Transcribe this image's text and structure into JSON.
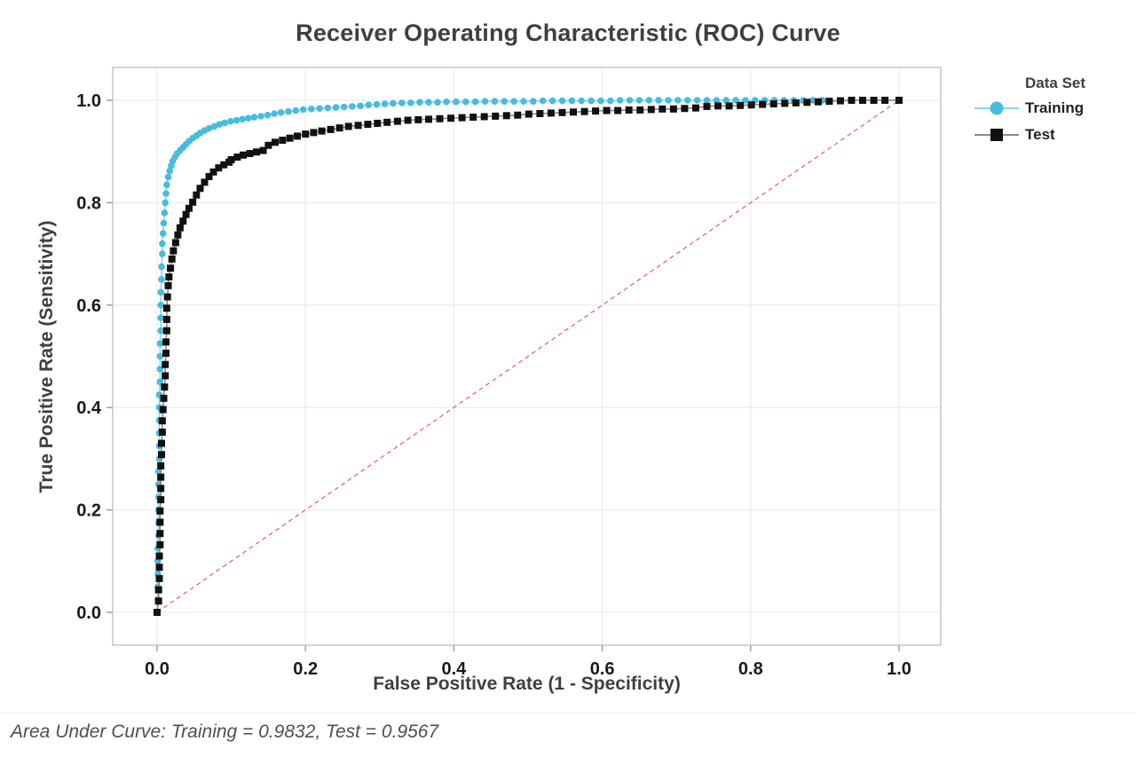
{
  "chart_data": {
    "type": "line",
    "title": "Receiver Operating Characteristic (ROC) Curve",
    "xlabel": "False Positive Rate (1 - Specificity)",
    "ylabel": "True Positive Rate (Sensitivity)",
    "legend_title": "Data Set",
    "legend_position": "right",
    "grid": true,
    "xlim": [
      0,
      1
    ],
    "ylim": [
      0,
      1
    ],
    "x_ticks": [
      "0.0",
      "0.2",
      "0.4",
      "0.6",
      "0.8",
      "1.0"
    ],
    "y_ticks": [
      "0.0",
      "0.2",
      "0.4",
      "0.6",
      "0.8",
      "1.0"
    ],
    "annotation": "Area Under Curve: Training = 0.9832, Test = 0.9567",
    "auc": {
      "training": 0.9832,
      "test": 0.9567
    },
    "reference_line": {
      "from": [
        0,
        0
      ],
      "to": [
        1,
        1
      ],
      "color": "#e35d5d",
      "style": "dashed"
    },
    "colors": {
      "grid": "#e8e8e8",
      "border": "#bdbdbd",
      "tick": "#9b9b9b",
      "tick_label": "#1a1a1a",
      "title_text": "#3f3f3f",
      "footer_text": "#4f4f4f"
    },
    "series": [
      {
        "name": "Training",
        "marker": "circle",
        "color": "#48bcde",
        "line_color": "#8ed4ea",
        "points": [
          [
            0.0,
            0.0
          ],
          [
            0.001,
            0.025
          ],
          [
            0.001,
            0.05
          ],
          [
            0.001,
            0.075
          ],
          [
            0.001,
            0.1
          ],
          [
            0.001,
            0.125
          ],
          [
            0.002,
            0.15
          ],
          [
            0.002,
            0.175
          ],
          [
            0.002,
            0.2
          ],
          [
            0.002,
            0.225
          ],
          [
            0.002,
            0.25
          ],
          [
            0.002,
            0.275
          ],
          [
            0.003,
            0.3
          ],
          [
            0.003,
            0.325
          ],
          [
            0.003,
            0.35
          ],
          [
            0.003,
            0.375
          ],
          [
            0.003,
            0.4
          ],
          [
            0.003,
            0.425
          ],
          [
            0.004,
            0.45
          ],
          [
            0.004,
            0.475
          ],
          [
            0.004,
            0.5
          ],
          [
            0.004,
            0.525
          ],
          [
            0.005,
            0.55
          ],
          [
            0.005,
            0.575
          ],
          [
            0.005,
            0.6
          ],
          [
            0.005,
            0.625
          ],
          [
            0.006,
            0.65
          ],
          [
            0.006,
            0.675
          ],
          [
            0.007,
            0.7
          ],
          [
            0.007,
            0.72
          ],
          [
            0.008,
            0.74
          ],
          [
            0.009,
            0.76
          ],
          [
            0.01,
            0.78
          ],
          [
            0.011,
            0.8
          ],
          [
            0.012,
            0.818
          ],
          [
            0.013,
            0.835
          ],
          [
            0.015,
            0.85
          ],
          [
            0.017,
            0.862
          ],
          [
            0.019,
            0.872
          ],
          [
            0.021,
            0.881
          ],
          [
            0.024,
            0.889
          ],
          [
            0.027,
            0.896
          ],
          [
            0.031,
            0.902
          ],
          [
            0.035,
            0.908
          ],
          [
            0.039,
            0.914
          ],
          [
            0.043,
            0.92
          ],
          [
            0.048,
            0.926
          ],
          [
            0.053,
            0.931
          ],
          [
            0.058,
            0.936
          ],
          [
            0.064,
            0.941
          ],
          [
            0.07,
            0.945
          ],
          [
            0.077,
            0.949
          ],
          [
            0.084,
            0.953
          ],
          [
            0.091,
            0.956
          ],
          [
            0.099,
            0.959
          ],
          [
            0.107,
            0.961
          ],
          [
            0.115,
            0.963
          ],
          [
            0.123,
            0.965
          ],
          [
            0.131,
            0.967
          ],
          [
            0.14,
            0.969
          ],
          [
            0.149,
            0.971
          ],
          [
            0.158,
            0.974
          ],
          [
            0.167,
            0.976
          ],
          [
            0.177,
            0.978
          ],
          [
            0.187,
            0.98
          ],
          [
            0.197,
            0.982
          ],
          [
            0.208,
            0.983
          ],
          [
            0.219,
            0.984
          ],
          [
            0.23,
            0.985
          ],
          [
            0.241,
            0.986
          ],
          [
            0.252,
            0.987
          ],
          [
            0.263,
            0.988
          ],
          [
            0.274,
            0.989
          ],
          [
            0.285,
            0.991
          ],
          [
            0.296,
            0.992
          ],
          [
            0.307,
            0.993
          ],
          [
            0.318,
            0.994
          ],
          [
            0.33,
            0.995
          ],
          [
            0.342,
            0.995
          ],
          [
            0.354,
            0.996
          ],
          [
            0.366,
            0.996
          ],
          [
            0.378,
            0.996
          ],
          [
            0.39,
            0.997
          ],
          [
            0.403,
            0.997
          ],
          [
            0.416,
            0.997
          ],
          [
            0.429,
            0.997
          ],
          [
            0.442,
            0.998
          ],
          [
            0.455,
            0.998
          ],
          [
            0.468,
            0.998
          ],
          [
            0.481,
            0.998
          ],
          [
            0.494,
            0.998
          ],
          [
            0.507,
            0.998
          ],
          [
            0.52,
            0.999
          ],
          [
            0.533,
            0.999
          ],
          [
            0.546,
            0.999
          ],
          [
            0.559,
            0.999
          ],
          [
            0.572,
            0.999
          ],
          [
            0.585,
            0.999
          ],
          [
            0.598,
            0.999
          ],
          [
            0.611,
            0.999
          ],
          [
            0.624,
            1.0
          ],
          [
            0.637,
            1.0
          ],
          [
            0.65,
            1.0
          ],
          [
            0.663,
            1.0
          ],
          [
            0.676,
            1.0
          ],
          [
            0.689,
            1.0
          ],
          [
            0.702,
            1.0
          ],
          [
            0.715,
            1.0
          ],
          [
            0.728,
            1.0
          ],
          [
            0.741,
            1.0
          ],
          [
            0.754,
            1.0
          ],
          [
            0.767,
            1.0
          ],
          [
            0.78,
            1.0
          ],
          [
            0.793,
            1.0
          ],
          [
            0.806,
            1.0
          ],
          [
            0.819,
            1.0
          ],
          [
            0.832,
            1.0
          ],
          [
            0.845,
            1.0
          ],
          [
            0.858,
            1.0
          ],
          [
            0.871,
            1.0
          ],
          [
            0.884,
            1.0
          ],
          [
            0.897,
            1.0
          ],
          [
            1.0,
            1.0
          ]
        ]
      },
      {
        "name": "Test",
        "marker": "square",
        "color": "#111111",
        "line_color": "#8a8a8a",
        "points": [
          [
            0.0,
            0.0
          ],
          [
            0.002,
            0.022
          ],
          [
            0.002,
            0.044
          ],
          [
            0.003,
            0.066
          ],
          [
            0.003,
            0.088
          ],
          [
            0.003,
            0.11
          ],
          [
            0.004,
            0.132
          ],
          [
            0.004,
            0.154
          ],
          [
            0.004,
            0.176
          ],
          [
            0.004,
            0.198
          ],
          [
            0.005,
            0.22
          ],
          [
            0.005,
            0.242
          ],
          [
            0.005,
            0.264
          ],
          [
            0.005,
            0.286
          ],
          [
            0.006,
            0.308
          ],
          [
            0.006,
            0.33
          ],
          [
            0.007,
            0.352
          ],
          [
            0.007,
            0.374
          ],
          [
            0.008,
            0.396
          ],
          [
            0.009,
            0.418
          ],
          [
            0.01,
            0.44
          ],
          [
            0.011,
            0.462
          ],
          [
            0.011,
            0.484
          ],
          [
            0.012,
            0.506
          ],
          [
            0.012,
            0.528
          ],
          [
            0.013,
            0.55
          ],
          [
            0.013,
            0.572
          ],
          [
            0.013,
            0.594
          ],
          [
            0.014,
            0.616
          ],
          [
            0.015,
            0.638
          ],
          [
            0.016,
            0.655
          ],
          [
            0.018,
            0.672
          ],
          [
            0.02,
            0.69
          ],
          [
            0.022,
            0.706
          ],
          [
            0.025,
            0.722
          ],
          [
            0.028,
            0.737
          ],
          [
            0.031,
            0.751
          ],
          [
            0.035,
            0.764
          ],
          [
            0.039,
            0.777
          ],
          [
            0.043,
            0.789
          ],
          [
            0.048,
            0.801
          ],
          [
            0.053,
            0.815
          ],
          [
            0.058,
            0.828
          ],
          [
            0.064,
            0.84
          ],
          [
            0.07,
            0.851
          ],
          [
            0.076,
            0.86
          ],
          [
            0.083,
            0.868
          ],
          [
            0.09,
            0.874
          ],
          [
            0.097,
            0.879
          ],
          [
            0.1,
            0.884
          ],
          [
            0.108,
            0.889
          ],
          [
            0.116,
            0.893
          ],
          [
            0.125,
            0.896
          ],
          [
            0.134,
            0.899
          ],
          [
            0.143,
            0.902
          ],
          [
            0.15,
            0.912
          ],
          [
            0.159,
            0.918
          ],
          [
            0.169,
            0.922
          ],
          [
            0.179,
            0.926
          ],
          [
            0.189,
            0.93
          ],
          [
            0.2,
            0.934
          ],
          [
            0.211,
            0.937
          ],
          [
            0.222,
            0.94
          ],
          [
            0.234,
            0.943
          ],
          [
            0.246,
            0.946
          ],
          [
            0.258,
            0.949
          ],
          [
            0.271,
            0.951
          ],
          [
            0.284,
            0.953
          ],
          [
            0.297,
            0.955
          ],
          [
            0.31,
            0.957
          ],
          [
            0.324,
            0.959
          ],
          [
            0.338,
            0.961
          ],
          [
            0.352,
            0.962
          ],
          [
            0.366,
            0.963
          ],
          [
            0.381,
            0.964
          ],
          [
            0.396,
            0.965
          ],
          [
            0.411,
            0.966
          ],
          [
            0.426,
            0.967
          ],
          [
            0.441,
            0.968
          ],
          [
            0.456,
            0.969
          ],
          [
            0.471,
            0.97
          ],
          [
            0.486,
            0.971
          ],
          [
            0.501,
            0.973
          ],
          [
            0.516,
            0.974
          ],
          [
            0.531,
            0.975
          ],
          [
            0.546,
            0.976
          ],
          [
            0.561,
            0.977
          ],
          [
            0.576,
            0.978
          ],
          [
            0.591,
            0.979
          ],
          [
            0.606,
            0.98
          ],
          [
            0.621,
            0.98
          ],
          [
            0.636,
            0.981
          ],
          [
            0.651,
            0.981
          ],
          [
            0.666,
            0.982
          ],
          [
            0.681,
            0.983
          ],
          [
            0.696,
            0.983
          ],
          [
            0.711,
            0.984
          ],
          [
            0.726,
            0.985
          ],
          [
            0.741,
            0.988
          ],
          [
            0.756,
            0.989
          ],
          [
            0.771,
            0.989
          ],
          [
            0.786,
            0.99
          ],
          [
            0.801,
            0.991
          ],
          [
            0.816,
            0.992
          ],
          [
            0.831,
            0.993
          ],
          [
            0.846,
            0.994
          ],
          [
            0.861,
            0.995
          ],
          [
            0.876,
            0.996
          ],
          [
            0.891,
            0.997
          ],
          [
            0.906,
            0.998
          ],
          [
            0.921,
            0.999
          ],
          [
            0.936,
            1.0
          ],
          [
            0.951,
            1.0
          ],
          [
            0.966,
            1.0
          ],
          [
            0.981,
            1.0
          ],
          [
            1.0,
            1.0
          ]
        ]
      }
    ]
  }
}
